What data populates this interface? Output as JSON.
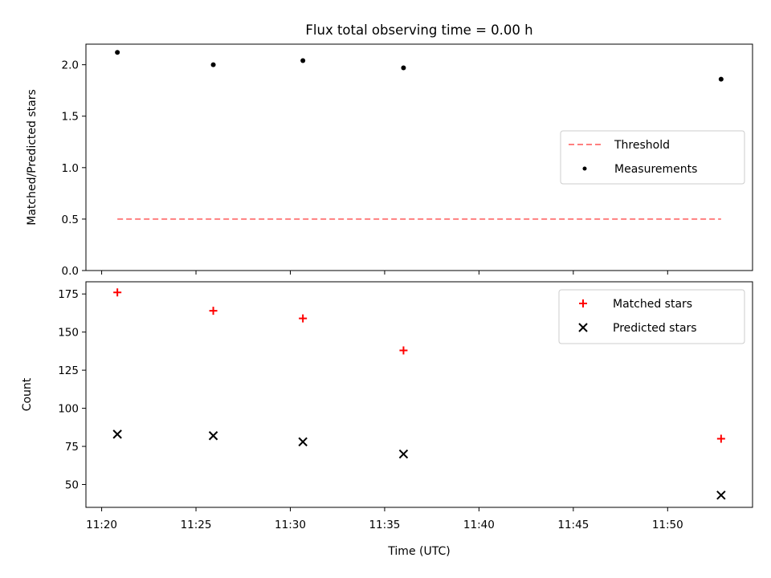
{
  "chart_data": [
    {
      "type": "scatter",
      "title": "Flux total observing time = 0.00 h",
      "ylabel": "Matched/Predicted stars",
      "xlabel": "",
      "xlim": [
        "11:19:10",
        "11:54:30"
      ],
      "ylim": [
        0,
        2.2
      ],
      "yticks": [
        0.0,
        0.5,
        1.0,
        1.5,
        2.0
      ],
      "ytick_labels": [
        "0.0",
        "0.5",
        "1.0",
        "1.5",
        "2.0"
      ],
      "grid": false,
      "legend_position": "center-right",
      "series": [
        {
          "name": "Threshold",
          "kind": "dashed-line",
          "color": "#ff7f7f",
          "x": [
            "11:20:50",
            "11:52:50"
          ],
          "y": [
            0.5,
            0.5
          ]
        },
        {
          "name": "Measurements",
          "kind": "dot",
          "color": "#000000",
          "x": [
            "11:20:50",
            "11:25:55",
            "11:30:40",
            "11:36:00",
            "11:52:50"
          ],
          "y": [
            2.12,
            2.0,
            2.04,
            1.97,
            1.86
          ]
        }
      ]
    },
    {
      "type": "scatter",
      "title": "",
      "ylabel": "Count",
      "xlabel": "Time (UTC)",
      "xlim": [
        "11:19:10",
        "11:54:30"
      ],
      "xticks": [
        "11:20",
        "11:25",
        "11:30",
        "11:35",
        "11:40",
        "11:45",
        "11:50"
      ],
      "ylim": [
        35,
        183
      ],
      "yticks": [
        50,
        75,
        100,
        125,
        150,
        175
      ],
      "ytick_labels": [
        "50",
        "75",
        "100",
        "125",
        "150",
        "175"
      ],
      "grid": false,
      "legend_position": "upper-right",
      "series": [
        {
          "name": "Matched stars",
          "kind": "plus",
          "color": "#ff0000",
          "x": [
            "11:20:50",
            "11:25:55",
            "11:30:40",
            "11:36:00",
            "11:52:50"
          ],
          "y": [
            176,
            164,
            159,
            138,
            80
          ]
        },
        {
          "name": "Predicted stars",
          "kind": "x",
          "color": "#000000",
          "x": [
            "11:20:50",
            "11:25:55",
            "11:30:40",
            "11:36:00",
            "11:52:50"
          ],
          "y": [
            83,
            82,
            78,
            70,
            43
          ]
        }
      ]
    }
  ]
}
